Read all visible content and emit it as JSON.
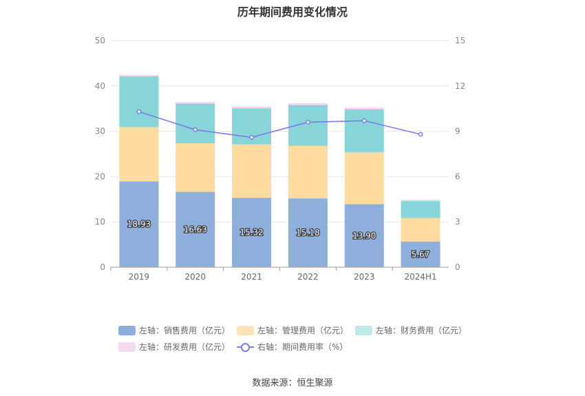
{
  "chart_data": {
    "type": "bar",
    "title": "历年期间费用变化情况",
    "categories": [
      "2019",
      "2020",
      "2021",
      "2022",
      "2023",
      "2024H1"
    ],
    "stacked": true,
    "series": [
      {
        "name": "左轴：销售费用（亿元）",
        "axis": "left",
        "color": "#8eaedb",
        "values": [
          18.93,
          16.63,
          15.32,
          15.18,
          13.9,
          5.67
        ],
        "labels_shown": true
      },
      {
        "name": "左轴：管理费用（亿元）",
        "axis": "left",
        "color": "#fedb9e",
        "values": [
          12.0,
          10.7,
          11.8,
          11.6,
          11.5,
          5.2
        ]
      },
      {
        "name": "左轴：财务费用（亿元）",
        "axis": "left",
        "color": "#87d4d9",
        "values": [
          11.2,
          8.8,
          7.9,
          9.0,
          9.4,
          3.7
        ]
      },
      {
        "name": "左轴：研发费用（亿元）",
        "axis": "left",
        "color": "#f2d4ec",
        "values": [
          0.3,
          0.3,
          0.4,
          0.4,
          0.4,
          0.3
        ]
      },
      {
        "name": "右轴：期间费用率（%）",
        "axis": "right",
        "type": "line",
        "color": "#7b7de8",
        "values": [
          10.3,
          9.1,
          8.6,
          9.6,
          9.7,
          8.8
        ]
      }
    ],
    "left_axis": {
      "ylim": [
        0,
        50
      ],
      "ticks": [
        "0",
        "10",
        "20",
        "30",
        "40",
        "50"
      ]
    },
    "right_axis": {
      "ylim": [
        0,
        15
      ],
      "ticks": [
        "0",
        "3",
        "6",
        "9",
        "12",
        "15"
      ]
    },
    "grid": true,
    "legend_position": "bottom"
  },
  "legend": {
    "items": [
      {
        "label": "左轴：销售费用（亿元）",
        "color": "#8eaedb",
        "kind": "bar"
      },
      {
        "label": "左轴：管理费用（亿元）",
        "color": "#fee3b8",
        "kind": "bar"
      },
      {
        "label": "左轴：财务费用（亿元）",
        "color": "#c0e8ea",
        "kind": "bar"
      },
      {
        "label": "左轴：研发费用（亿元）",
        "color": "#f2dcee",
        "kind": "bar"
      },
      {
        "label": "右轴：期间费用率（%）",
        "color": "#7b7de8",
        "kind": "line"
      }
    ]
  },
  "source": "数据来源：恒生聚源"
}
